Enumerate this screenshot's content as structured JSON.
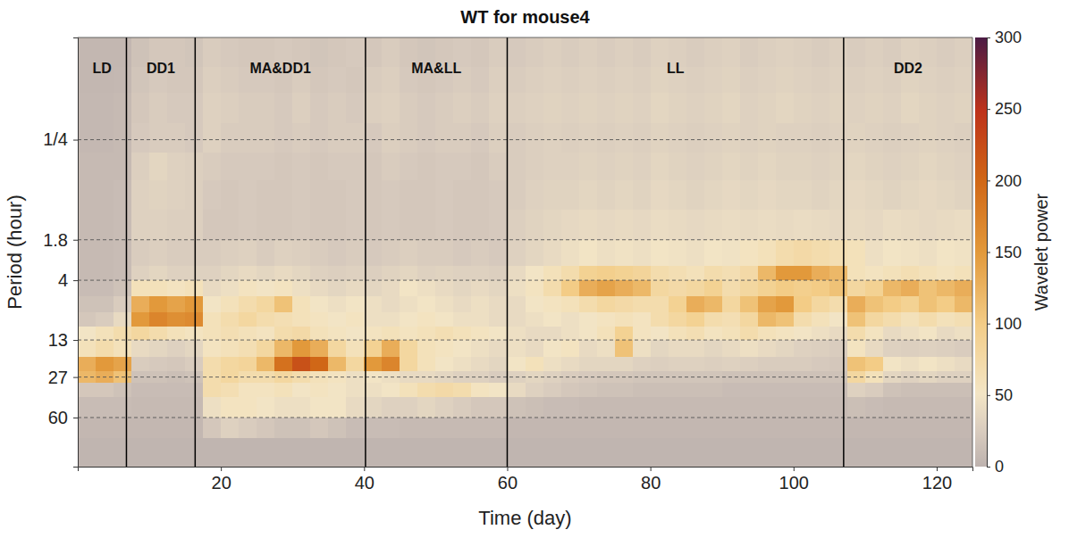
{
  "chart_data": {
    "type": "heatmap",
    "title": "WT for mouse4",
    "x_label": "Time (day)",
    "y_label": "Period (hour)",
    "xlim": [
      0,
      125
    ],
    "xticks": [
      20,
      40,
      60,
      80,
      100,
      120
    ],
    "ylim": [
      0.0333,
      158
    ],
    "yticks": [
      {
        "value": 0.25,
        "label": "1/4"
      },
      1.8,
      4,
      13,
      27,
      60
    ],
    "log": "y",
    "grid": true,
    "phases": [
      {
        "label": "LD",
        "start": 0,
        "end": 6.8
      },
      {
        "label": "DD1",
        "start": 6.8,
        "end": 16.4
      },
      {
        "label": "MA&DD1",
        "start": 16.4,
        "end": 40.2
      },
      {
        "label": "MA&LL",
        "start": 40.2,
        "end": 60
      },
      {
        "label": "LL",
        "start": 60,
        "end": 107
      },
      {
        "label": "DD2",
        "start": 107,
        "end": 125
      }
    ],
    "colorbar": {
      "label": "Wavelet power",
      "range": [
        0,
        300
      ],
      "ticks": [
        0,
        50,
        100,
        150,
        200,
        250,
        300
      ]
    },
    "time_bins": [
      0,
      2.5,
      5,
      7.5,
      10,
      12.5,
      15,
      17.5,
      20,
      22.5,
      25,
      27.5,
      30,
      32.5,
      35,
      37.5,
      40,
      42.5,
      45,
      47.5,
      50,
      52.5,
      55,
      57.5,
      60,
      62.5,
      65,
      67.5,
      70,
      72.5,
      75,
      77.5,
      80,
      82.5,
      85,
      87.5,
      90,
      92.5,
      95,
      97.5,
      100,
      102.5,
      105,
      107.5,
      110,
      112.5,
      115,
      117.5,
      120,
      122.5,
      125
    ],
    "period_bins": [
      0.0333,
      0.06,
      0.1,
      0.18,
      0.32,
      0.56,
      1,
      1.8,
      3,
      4,
      5.5,
      7.5,
      10,
      13,
      18,
      24,
      30,
      40,
      60,
      90,
      158
    ],
    "power": [
      [
        5,
        5,
        5,
        15,
        20,
        20,
        18,
        25,
        22,
        20,
        20,
        22,
        20,
        18,
        20,
        22,
        20,
        25,
        20,
        18,
        20,
        22,
        20,
        25,
        22,
        25,
        28,
        25,
        28,
        25,
        28,
        25,
        30,
        28,
        25,
        28,
        30,
        25,
        28,
        30,
        28,
        25,
        28,
        25,
        28,
        25,
        30,
        28,
        25,
        28
      ],
      [
        5,
        5,
        6,
        18,
        22,
        20,
        20,
        28,
        25,
        22,
        22,
        20,
        25,
        20,
        22,
        20,
        25,
        28,
        22,
        20,
        22,
        25,
        22,
        28,
        25,
        28,
        30,
        28,
        30,
        28,
        30,
        28,
        32,
        30,
        28,
        30,
        32,
        28,
        30,
        32,
        30,
        28,
        30,
        28,
        30,
        28,
        32,
        30,
        28,
        30
      ],
      [
        6,
        6,
        8,
        20,
        25,
        22,
        22,
        30,
        28,
        25,
        25,
        22,
        28,
        22,
        25,
        22,
        28,
        30,
        25,
        22,
        25,
        28,
        25,
        30,
        28,
        30,
        32,
        30,
        32,
        30,
        32,
        30,
        35,
        32,
        30,
        32,
        35,
        30,
        32,
        35,
        32,
        30,
        32,
        30,
        32,
        30,
        35,
        32,
        30,
        32
      ],
      [
        6,
        6,
        8,
        22,
        25,
        25,
        22,
        30,
        25,
        25,
        25,
        22,
        25,
        22,
        25,
        25,
        22,
        28,
        25,
        22,
        25,
        25,
        22,
        28,
        25,
        28,
        30,
        28,
        30,
        28,
        30,
        28,
        32,
        30,
        28,
        30,
        32,
        30,
        32,
        30,
        30,
        28,
        30,
        32,
        30,
        28,
        30,
        32,
        30,
        28
      ],
      [
        8,
        8,
        8,
        28,
        35,
        30,
        28,
        25,
        22,
        22,
        22,
        20,
        22,
        20,
        22,
        22,
        20,
        25,
        22,
        20,
        22,
        22,
        20,
        25,
        25,
        28,
        30,
        30,
        32,
        30,
        32,
        30,
        35,
        32,
        30,
        32,
        35,
        32,
        35,
        32,
        32,
        30,
        32,
        35,
        32,
        30,
        32,
        35,
        32,
        30
      ],
      [
        8,
        8,
        10,
        30,
        32,
        30,
        28,
        22,
        20,
        22,
        20,
        20,
        22,
        20,
        20,
        22,
        20,
        22,
        20,
        20,
        22,
        20,
        20,
        22,
        25,
        30,
        32,
        32,
        35,
        32,
        35,
        32,
        38,
        35,
        32,
        35,
        38,
        35,
        38,
        35,
        35,
        32,
        35,
        38,
        35,
        32,
        35,
        38,
        35,
        32
      ],
      [
        8,
        8,
        10,
        30,
        30,
        28,
        28,
        20,
        20,
        22,
        20,
        20,
        22,
        20,
        20,
        22,
        20,
        22,
        20,
        20,
        22,
        20,
        20,
        22,
        28,
        32,
        35,
        38,
        40,
        38,
        40,
        38,
        42,
        40,
        38,
        40,
        42,
        40,
        42,
        40,
        42,
        40,
        38,
        40,
        38,
        42,
        40,
        38,
        40,
        42
      ],
      [
        8,
        8,
        10,
        25,
        28,
        25,
        25,
        25,
        28,
        30,
        25,
        30,
        28,
        25,
        22,
        25,
        22,
        25,
        28,
        25,
        25,
        22,
        25,
        22,
        30,
        35,
        40,
        45,
        50,
        45,
        48,
        45,
        50,
        48,
        45,
        50,
        48,
        55,
        60,
        70,
        75,
        70,
        65,
        60,
        45,
        50,
        48,
        45,
        50,
        48
      ],
      [
        8,
        8,
        10,
        30,
        35,
        30,
        30,
        30,
        35,
        40,
        35,
        40,
        35,
        30,
        28,
        30,
        28,
        32,
        35,
        30,
        32,
        30,
        30,
        28,
        40,
        50,
        60,
        70,
        90,
        95,
        90,
        85,
        70,
        65,
        60,
        70,
        65,
        75,
        120,
        150,
        150,
        130,
        120,
        60,
        55,
        60,
        65,
        60,
        55,
        60
      ],
      [
        10,
        10,
        15,
        60,
        60,
        55,
        60,
        40,
        45,
        55,
        50,
        55,
        45,
        40,
        35,
        40,
        35,
        40,
        50,
        45,
        40,
        35,
        40,
        35,
        45,
        55,
        70,
        100,
        130,
        140,
        130,
        120,
        80,
        75,
        80,
        90,
        70,
        80,
        90,
        100,
        95,
        100,
        110,
        80,
        90,
        120,
        130,
        110,
        120,
        130
      ],
      [
        15,
        15,
        25,
        130,
        150,
        140,
        150,
        50,
        60,
        70,
        80,
        110,
        60,
        50,
        45,
        50,
        45,
        40,
        45,
        50,
        45,
        40,
        45,
        40,
        40,
        50,
        55,
        60,
        70,
        80,
        75,
        70,
        70,
        90,
        130,
        120,
        80,
        110,
        140,
        150,
        100,
        80,
        70,
        130,
        110,
        100,
        90,
        110,
        100,
        120
      ],
      [
        20,
        25,
        40,
        150,
        170,
        160,
        165,
        60,
        70,
        80,
        70,
        65,
        60,
        55,
        50,
        55,
        45,
        45,
        50,
        55,
        50,
        45,
        45,
        40,
        40,
        45,
        50,
        45,
        50,
        55,
        60,
        55,
        70,
        80,
        90,
        70,
        65,
        80,
        120,
        110,
        70,
        60,
        50,
        110,
        80,
        70,
        60,
        70,
        60,
        65
      ],
      [
        50,
        60,
        70,
        80,
        70,
        60,
        55,
        60,
        65,
        60,
        55,
        70,
        75,
        60,
        55,
        50,
        55,
        60,
        55,
        60,
        65,
        60,
        55,
        50,
        45,
        40,
        40,
        45,
        50,
        60,
        90,
        55,
        50,
        60,
        65,
        55,
        60,
        70,
        60,
        55,
        50,
        45,
        40,
        70,
        55,
        40,
        45,
        50,
        40,
        45
      ],
      [
        60,
        70,
        60,
        40,
        35,
        30,
        35,
        55,
        60,
        65,
        80,
        120,
        150,
        130,
        80,
        60,
        90,
        130,
        80,
        60,
        55,
        50,
        45,
        40,
        45,
        40,
        50,
        55,
        40,
        45,
        110,
        45,
        35,
        40,
        40,
        35,
        40,
        45,
        40,
        35,
        30,
        28,
        25,
        55,
        40,
        30,
        28,
        30,
        28,
        25
      ],
      [
        130,
        150,
        140,
        25,
        22,
        20,
        25,
        70,
        80,
        85,
        120,
        190,
        220,
        200,
        120,
        80,
        150,
        170,
        80,
        60,
        50,
        45,
        40,
        35,
        50,
        60,
        45,
        40,
        35,
        35,
        35,
        30,
        28,
        30,
        30,
        28,
        30,
        28,
        25,
        25,
        25,
        22,
        20,
        110,
        100,
        50,
        45,
        50,
        45,
        40
      ],
      [
        120,
        130,
        110,
        15,
        15,
        12,
        15,
        70,
        80,
        70,
        70,
        80,
        70,
        60,
        55,
        45,
        50,
        45,
        40,
        40,
        35,
        30,
        30,
        25,
        30,
        35,
        30,
        25,
        22,
        20,
        20,
        18,
        18,
        18,
        18,
        18,
        15,
        15,
        15,
        15,
        15,
        15,
        15,
        80,
        60,
        35,
        30,
        35,
        30,
        30
      ],
      [
        20,
        20,
        15,
        10,
        10,
        10,
        10,
        70,
        65,
        55,
        55,
        60,
        50,
        55,
        50,
        45,
        45,
        50,
        60,
        70,
        75,
        70,
        55,
        50,
        40,
        30,
        25,
        20,
        18,
        15,
        15,
        12,
        12,
        12,
        12,
        12,
        10,
        10,
        10,
        10,
        10,
        10,
        10,
        30,
        25,
        15,
        12,
        12,
        12,
        12
      ],
      [
        10,
        10,
        10,
        8,
        8,
        8,
        8,
        45,
        55,
        55,
        50,
        45,
        45,
        50,
        50,
        40,
        35,
        30,
        30,
        35,
        30,
        25,
        20,
        20,
        15,
        12,
        10,
        10,
        8,
        8,
        8,
        8,
        8,
        8,
        8,
        8,
        8,
        8,
        8,
        8,
        8,
        8,
        8,
        12,
        10,
        8,
        8,
        8,
        8,
        8
      ],
      [
        5,
        5,
        5,
        5,
        5,
        5,
        5,
        20,
        30,
        25,
        20,
        15,
        15,
        20,
        15,
        10,
        10,
        10,
        8,
        8,
        8,
        8,
        8,
        8,
        5,
        5,
        5,
        5,
        5,
        5,
        5,
        5,
        5,
        5,
        5,
        5,
        5,
        5,
        5,
        5,
        5,
        5,
        5,
        5,
        5,
        5,
        5,
        5,
        5,
        5
      ],
      [
        3,
        3,
        3,
        3,
        3,
        3,
        3,
        3,
        3,
        3,
        3,
        3,
        3,
        3,
        3,
        3,
        3,
        3,
        3,
        3,
        3,
        3,
        3,
        3,
        3,
        3,
        3,
        3,
        3,
        3,
        3,
        3,
        3,
        3,
        3,
        3,
        3,
        3,
        3,
        3,
        3,
        3,
        3,
        3,
        3,
        3,
        3,
        3,
        3,
        3
      ]
    ]
  }
}
